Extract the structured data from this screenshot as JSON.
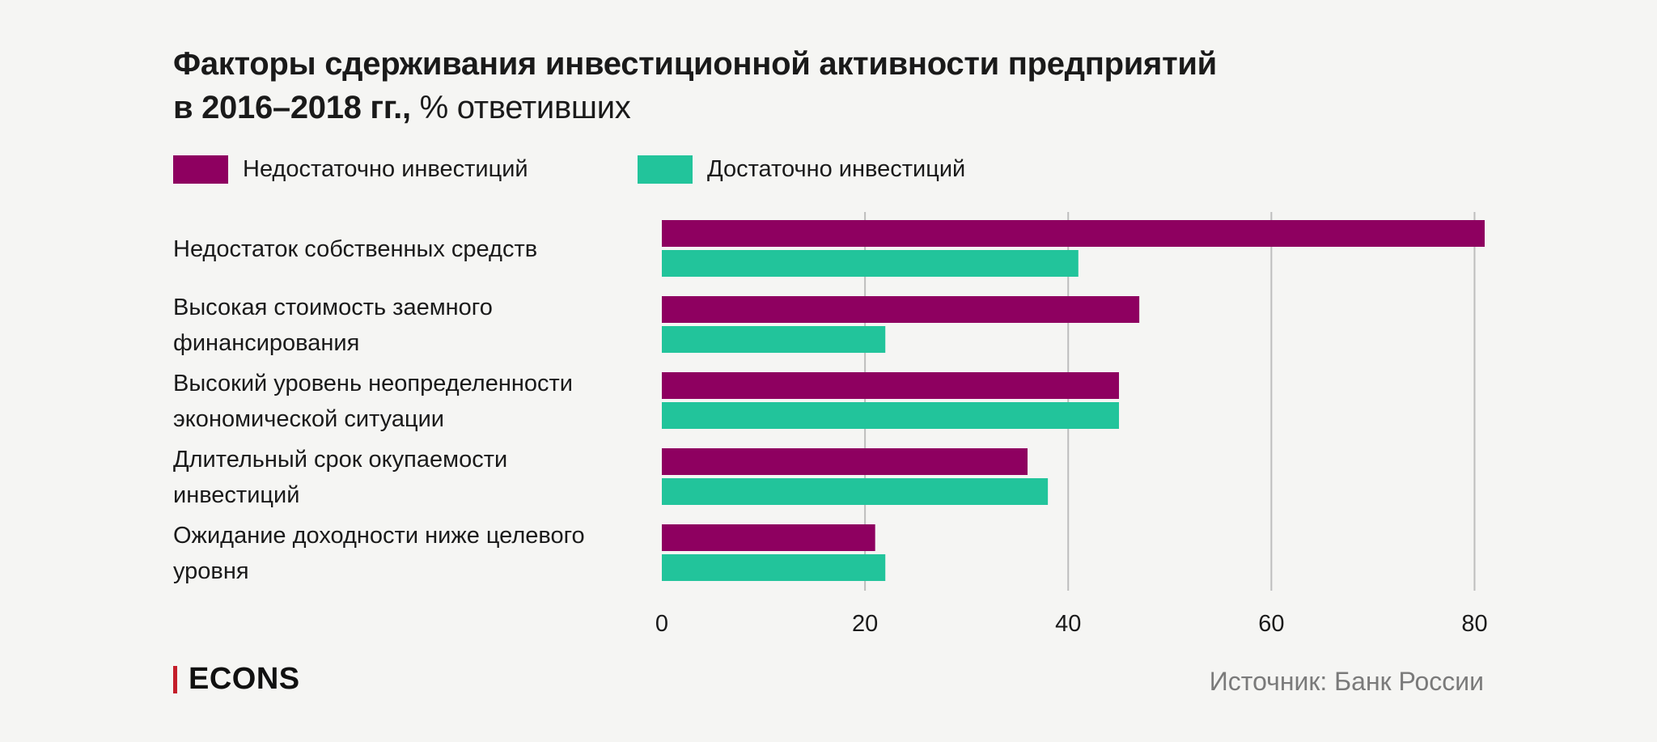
{
  "header": {
    "title_line1": "Факторы сдерживания инвестиционной активности предприятий",
    "title_line2": "в 2016–2018 гг.,",
    "title_suffix": "% ответивших"
  },
  "legend": [
    {
      "label": "Недостаточно инвестиций",
      "color": "#8e0060"
    },
    {
      "label": "Достаточно инвестиций",
      "color": "#22c49b"
    }
  ],
  "chart_data": {
    "type": "bar",
    "orientation": "horizontal",
    "categories": [
      [
        "Недостаток собственных средств"
      ],
      [
        "Высокая стоимость заемного",
        "финансирования"
      ],
      [
        "Высокий уровень неопределенности",
        "экономической ситуации"
      ],
      [
        "Длительный срок окупаемости",
        "инвестиций"
      ],
      [
        "Ожидание доходности ниже целевого",
        "уровня"
      ]
    ],
    "series": [
      {
        "name": "Недостаточно инвестиций",
        "color": "#8e0060",
        "values": [
          81,
          47,
          45,
          36,
          21
        ]
      },
      {
        "name": "Достаточно инвестиций",
        "color": "#22c49b",
        "values": [
          41,
          22,
          45,
          38,
          22
        ]
      }
    ],
    "xlim": [
      0,
      80
    ],
    "xticks": [
      0,
      20,
      40,
      60,
      80
    ],
    "grid": true,
    "legend_position": "top-left"
  },
  "footer": {
    "brand": "ECONS",
    "source": "Источник: Банк России"
  }
}
